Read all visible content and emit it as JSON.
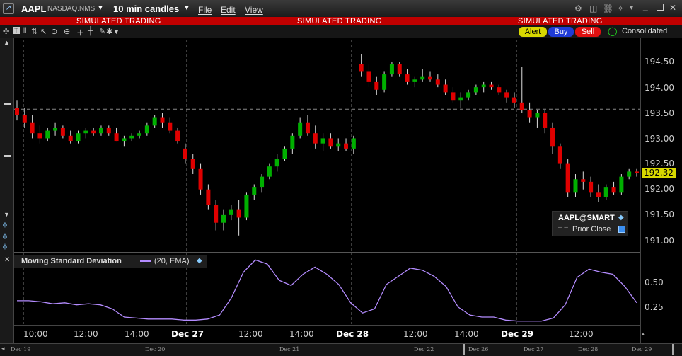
{
  "window": {
    "symbol": "AAPL",
    "exchange": "NASDAQ.NMS",
    "timeframe": "10 min candles",
    "menu": [
      "File",
      "Edit",
      "View"
    ],
    "sim_banner": "SIMULATED TRADING"
  },
  "order_buttons": {
    "alert": "Alert",
    "buy": "Buy",
    "sell": "Sell",
    "consolidated": "Consolidated"
  },
  "legend": {
    "contract": "AAPL@SMART",
    "prior_close": "Prior Close"
  },
  "indicator": {
    "name": "Moving Standard Deviation",
    "params": "(20, EMA)"
  },
  "price_axis": {
    "ticks": [
      "194.50",
      "194.00",
      "193.50",
      "193.00",
      "192.50",
      "192.00",
      "191.50",
      "191.00"
    ],
    "last_price": "192.32"
  },
  "indicator_axis": {
    "ticks": [
      "0.50",
      "0.25"
    ]
  },
  "time_axis": {
    "labels": [
      "10:00",
      "12:00",
      "14:00",
      "Dec 27",
      "12:00",
      "14:00",
      "Dec 28",
      "12:00",
      "14:00",
      "Dec 29",
      "12:00"
    ],
    "overview_labels": [
      "Dec 19",
      "Dec 20",
      "Dec 21",
      "Dec 22",
      "Dec 26",
      "Dec 27",
      "Dec 28",
      "Dec 29"
    ]
  },
  "colors": {
    "up": "#00b000",
    "down": "#e00000",
    "indicator_line": "#b48cff",
    "sim_bar": "#c00000",
    "last_price_bg": "#d8d800"
  },
  "chart_data": {
    "type": "candlestick",
    "y_range": [
      190.9,
      194.85
    ],
    "ohlc": [
      [
        193.6,
        193.75,
        193.35,
        193.45
      ],
      [
        193.45,
        193.6,
        193.2,
        193.3
      ],
      [
        193.3,
        193.45,
        193.0,
        193.1
      ],
      [
        193.1,
        193.25,
        192.9,
        193.0
      ],
      [
        193.0,
        193.2,
        192.95,
        193.15
      ],
      [
        193.15,
        193.3,
        193.05,
        193.2
      ],
      [
        193.2,
        193.25,
        193.0,
        193.05
      ],
      [
        193.05,
        193.15,
        192.9,
        192.95
      ],
      [
        192.95,
        193.15,
        192.9,
        193.1
      ],
      [
        193.1,
        193.2,
        193.0,
        193.15
      ],
      [
        193.15,
        193.2,
        193.05,
        193.1
      ],
      [
        193.1,
        193.25,
        193.05,
        193.2
      ],
      [
        193.2,
        193.25,
        193.05,
        193.1
      ],
      [
        193.1,
        193.2,
        192.95,
        192.95
      ],
      [
        192.95,
        193.05,
        192.85,
        193.0
      ],
      [
        193.0,
        193.1,
        192.95,
        193.05
      ],
      [
        193.05,
        193.15,
        193.0,
        193.1
      ],
      [
        193.1,
        193.3,
        193.05,
        193.25
      ],
      [
        193.25,
        193.45,
        193.2,
        193.4
      ],
      [
        193.4,
        193.5,
        193.2,
        193.3
      ],
      [
        193.3,
        193.4,
        193.1,
        193.15
      ],
      [
        193.15,
        193.2,
        192.9,
        192.95
      ],
      [
        192.8,
        192.9,
        192.5,
        192.6
      ],
      [
        192.6,
        192.7,
        192.3,
        192.4
      ],
      [
        192.4,
        192.5,
        191.9,
        192.0
      ],
      [
        192.0,
        192.1,
        191.6,
        191.7
      ],
      [
        191.7,
        191.8,
        191.2,
        191.35
      ],
      [
        191.35,
        191.6,
        191.2,
        191.5
      ],
      [
        191.5,
        191.7,
        191.4,
        191.6
      ],
      [
        191.6,
        191.8,
        191.1,
        191.45
      ],
      [
        191.45,
        191.95,
        191.4,
        191.9
      ],
      [
        191.9,
        192.1,
        191.8,
        192.05
      ],
      [
        192.05,
        192.3,
        191.95,
        192.25
      ],
      [
        192.25,
        192.5,
        192.2,
        192.45
      ],
      [
        192.45,
        192.7,
        192.35,
        192.6
      ],
      [
        192.6,
        192.85,
        192.55,
        192.8
      ],
      [
        192.8,
        193.1,
        192.7,
        193.05
      ],
      [
        193.05,
        193.4,
        193.0,
        193.3
      ],
      [
        193.3,
        193.45,
        193.05,
        193.1
      ],
      [
        193.1,
        193.25,
        192.8,
        192.9
      ],
      [
        192.9,
        193.1,
        192.75,
        193.0
      ],
      [
        193.0,
        193.1,
        192.8,
        192.85
      ],
      [
        192.85,
        193.0,
        192.75,
        192.9
      ],
      [
        192.9,
        193.0,
        192.75,
        192.8
      ],
      [
        192.8,
        193.05,
        192.7,
        193.0
      ],
      [
        194.45,
        194.65,
        194.2,
        194.3
      ],
      [
        194.3,
        194.45,
        194.0,
        194.1
      ],
      [
        194.1,
        194.2,
        193.85,
        193.95
      ],
      [
        193.95,
        194.3,
        193.9,
        194.25
      ],
      [
        194.25,
        194.5,
        194.2,
        194.45
      ],
      [
        194.45,
        194.5,
        194.2,
        194.25
      ],
      [
        194.25,
        194.35,
        194.05,
        194.1
      ],
      [
        194.1,
        194.2,
        194.0,
        194.15
      ],
      [
        194.15,
        194.35,
        194.1,
        194.2
      ],
      [
        194.2,
        194.3,
        194.1,
        194.15
      ],
      [
        194.15,
        194.25,
        194.0,
        194.05
      ],
      [
        194.05,
        194.15,
        193.85,
        193.9
      ],
      [
        193.9,
        194.0,
        193.7,
        193.75
      ],
      [
        193.75,
        193.9,
        193.6,
        193.8
      ],
      [
        193.8,
        193.95,
        193.75,
        193.9
      ],
      [
        193.9,
        194.05,
        193.85,
        194.0
      ],
      [
        194.0,
        194.1,
        193.9,
        194.05
      ],
      [
        194.05,
        194.1,
        193.95,
        194.0
      ],
      [
        194.0,
        194.05,
        193.85,
        193.9
      ],
      [
        193.9,
        193.95,
        193.7,
        193.8
      ],
      [
        193.8,
        193.9,
        193.6,
        193.7
      ],
      [
        193.7,
        194.4,
        193.5,
        193.55
      ],
      [
        193.55,
        193.7,
        193.3,
        193.4
      ],
      [
        193.4,
        193.55,
        193.2,
        193.5
      ],
      [
        193.5,
        193.55,
        193.1,
        193.2
      ],
      [
        193.2,
        193.3,
        192.7,
        192.85
      ],
      [
        192.85,
        192.9,
        192.4,
        192.5
      ],
      [
        192.5,
        192.6,
        191.85,
        191.95
      ],
      [
        191.95,
        192.3,
        191.85,
        192.2
      ],
      [
        192.2,
        192.35,
        192.0,
        192.15
      ],
      [
        192.15,
        192.25,
        191.85,
        191.95
      ],
      [
        191.95,
        192.1,
        191.75,
        191.85
      ],
      [
        191.85,
        192.1,
        191.8,
        192.05
      ],
      [
        192.05,
        192.15,
        191.9,
        191.95
      ],
      [
        191.95,
        192.3,
        191.9,
        192.25
      ],
      [
        192.25,
        192.4,
        192.2,
        192.35
      ],
      [
        192.35,
        192.4,
        192.25,
        192.32
      ]
    ],
    "msd_values": [
      0.32,
      0.32,
      0.31,
      0.29,
      0.3,
      0.28,
      0.29,
      0.28,
      0.24,
      0.16,
      0.15,
      0.14,
      0.14,
      0.14,
      0.13,
      0.13,
      0.14,
      0.18,
      0.35,
      0.6,
      0.72,
      0.68,
      0.52,
      0.47,
      0.58,
      0.65,
      0.58,
      0.48,
      0.3,
      0.2,
      0.24,
      0.48,
      0.56,
      0.64,
      0.62,
      0.56,
      0.46,
      0.26,
      0.18,
      0.16,
      0.16,
      0.13,
      0.12,
      0.12,
      0.12,
      0.15,
      0.28,
      0.55,
      0.63,
      0.6,
      0.58,
      0.46,
      0.3
    ]
  }
}
